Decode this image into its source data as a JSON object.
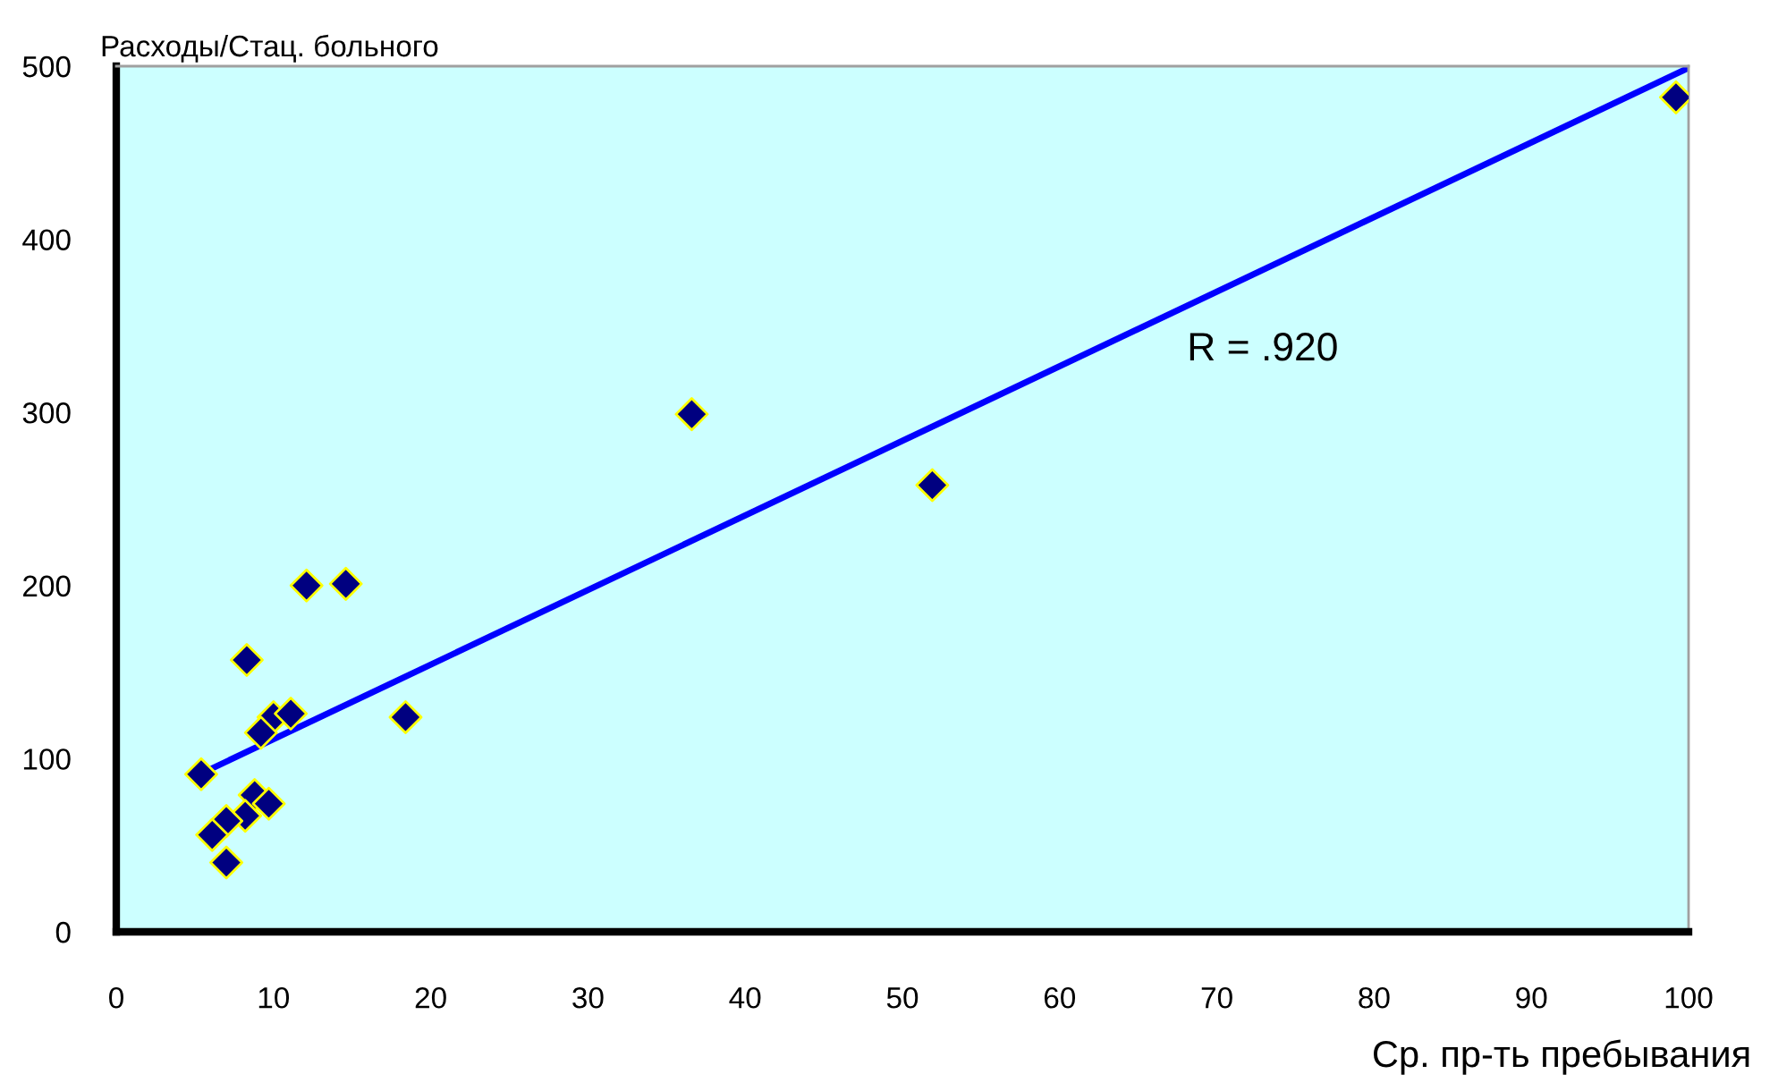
{
  "chart_data": {
    "type": "scatter",
    "xlabel": "Ср. пр-ть пребывания",
    "ylabel": "Расходы/Стац. больного",
    "annotations": [
      "R = .920"
    ],
    "xlim": [
      0,
      100
    ],
    "ylim": [
      0,
      500
    ],
    "xticks": [
      0,
      10,
      20,
      30,
      40,
      50,
      60,
      70,
      80,
      90,
      100
    ],
    "yticks": [
      0,
      100,
      200,
      300,
      400,
      500
    ],
    "grid": false,
    "marker": "diamond",
    "series": [
      {
        "color": "#000080",
        "x": [
          12.1,
          14.6,
          8.3,
          10.0,
          11.1,
          9.2,
          18.4,
          5.4,
          8.8,
          9.7,
          8.2,
          7.0,
          6.1,
          7.0,
          36.6,
          51.9,
          99.2
        ],
        "values": [
          200,
          201,
          157,
          124,
          126,
          115,
          124,
          91,
          79,
          74,
          67,
          64,
          56,
          40,
          299,
          258,
          482
        ]
      },
      {
        "type": "line",
        "color": "#0000ff",
        "marker": "none",
        "x": [
          5.3,
          100
        ],
        "values": [
          91,
          499
        ]
      }
    ]
  }
}
